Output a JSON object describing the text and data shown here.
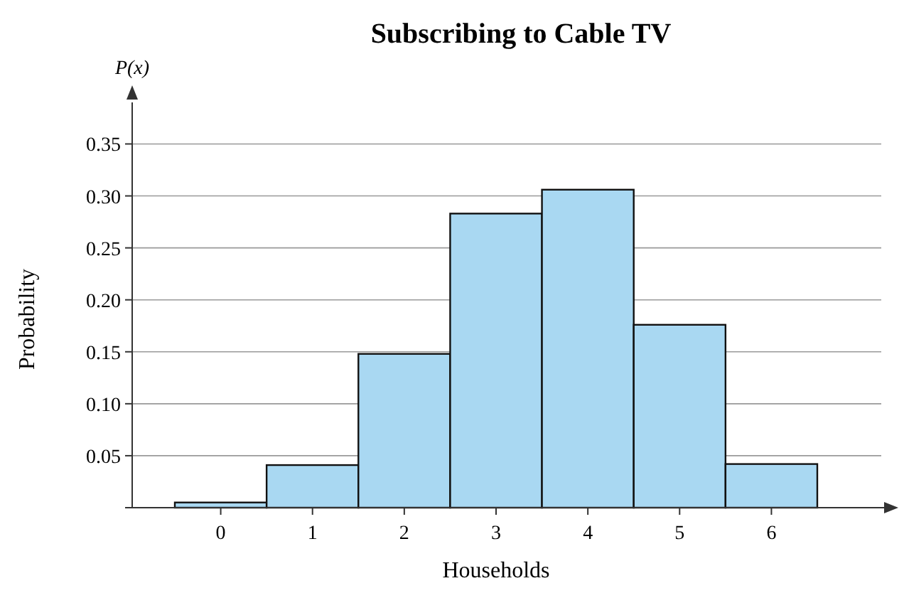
{
  "chart_data": {
    "type": "bar",
    "title": "Subscribing to Cable TV",
    "xlabel": "Households",
    "ylabel": "Probability",
    "annotations": [
      "P(x)"
    ],
    "categories": [
      "0",
      "1",
      "2",
      "3",
      "4",
      "5",
      "6"
    ],
    "values": [
      0.005,
      0.041,
      0.148,
      0.283,
      0.306,
      0.176,
      0.042
    ],
    "color": "#a9d8f2",
    "ylim": [
      0,
      0.39
    ],
    "yticks": [
      {
        "value": 0,
        "label": null
      },
      {
        "value": 0.05,
        "label": "0.05"
      },
      {
        "value": 0.1,
        "label": "0.10"
      },
      {
        "value": 0.15,
        "label": "0.15"
      },
      {
        "value": 0.2,
        "label": "0.20"
      },
      {
        "value": 0.25,
        "label": "0.25"
      },
      {
        "value": 0.3,
        "label": "0.30"
      },
      {
        "value": 0.35,
        "label": "0.35"
      }
    ],
    "grid": "y"
  }
}
